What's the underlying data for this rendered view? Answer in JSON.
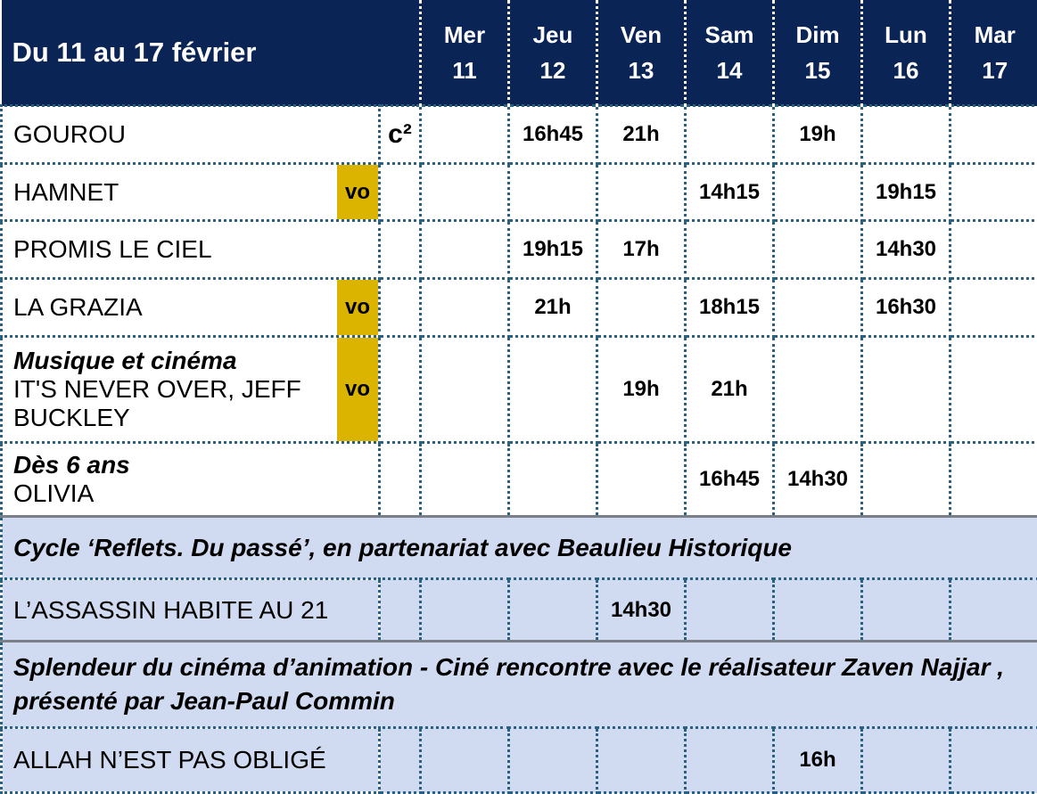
{
  "header": {
    "title": "Du 11 au 17 février",
    "days": [
      {
        "name": "Mer",
        "num": "11"
      },
      {
        "name": "Jeu",
        "num": "12"
      },
      {
        "name": "Ven",
        "num": "13"
      },
      {
        "name": "Sam",
        "num": "14"
      },
      {
        "name": "Dim",
        "num": "15"
      },
      {
        "name": "Lun",
        "num": "16"
      },
      {
        "name": "Mar",
        "num": "17"
      }
    ]
  },
  "colors": {
    "header": "#0b2456",
    "vo_badge": "#dbb400",
    "section_bg": "#d0daf1"
  },
  "films": [
    {
      "category": "",
      "title": "GOUROU",
      "badge": "",
      "tag": "c²",
      "times": [
        "",
        "16h45",
        "21h",
        "",
        "19h",
        "",
        ""
      ]
    },
    {
      "category": "",
      "title": "HAMNET",
      "badge": "vo",
      "tag": "",
      "times": [
        "",
        "",
        "",
        "14h15",
        "",
        "19h15",
        ""
      ]
    },
    {
      "category": "",
      "title": "PROMIS LE CIEL",
      "badge": "",
      "tag": "",
      "times": [
        "",
        "19h15",
        "17h",
        "",
        "",
        "14h30",
        ""
      ]
    },
    {
      "category": "",
      "title": "LA GRAZIA",
      "badge": "vo",
      "tag": "",
      "times": [
        "",
        "21h",
        "",
        "18h15",
        "",
        "16h30",
        ""
      ]
    },
    {
      "category": "Musique et cinéma",
      "title": "IT'S NEVER OVER, JEFF BUCKLEY",
      "badge": "vo",
      "tag": "",
      "times": [
        "",
        "",
        "19h",
        "21h",
        "",
        "",
        ""
      ]
    },
    {
      "category": "Dès 6 ans",
      "title": "OLIVIA",
      "badge": "",
      "tag": "",
      "times": [
        "",
        "",
        "",
        "16h45",
        "14h30",
        "",
        ""
      ]
    }
  ],
  "sections": [
    {
      "heading": "Cycle ‘Reflets. Du passé’, en partenariat avec Beaulieu Historique",
      "film": {
        "title": "L’ASSASSIN HABITE AU 21",
        "times": [
          "",
          "",
          "14h30",
          "",
          "",
          "",
          ""
        ]
      }
    },
    {
      "heading": "Splendeur du cinéma d’animation - Ciné rencontre avec le réalisateur Zaven Najjar , présenté par Jean-Paul Commin",
      "film": {
        "title": "ALLAH N’EST PAS OBLIGÉ",
        "times": [
          "",
          "",
          "",
          "",
          "16h",
          "",
          ""
        ]
      }
    }
  ]
}
